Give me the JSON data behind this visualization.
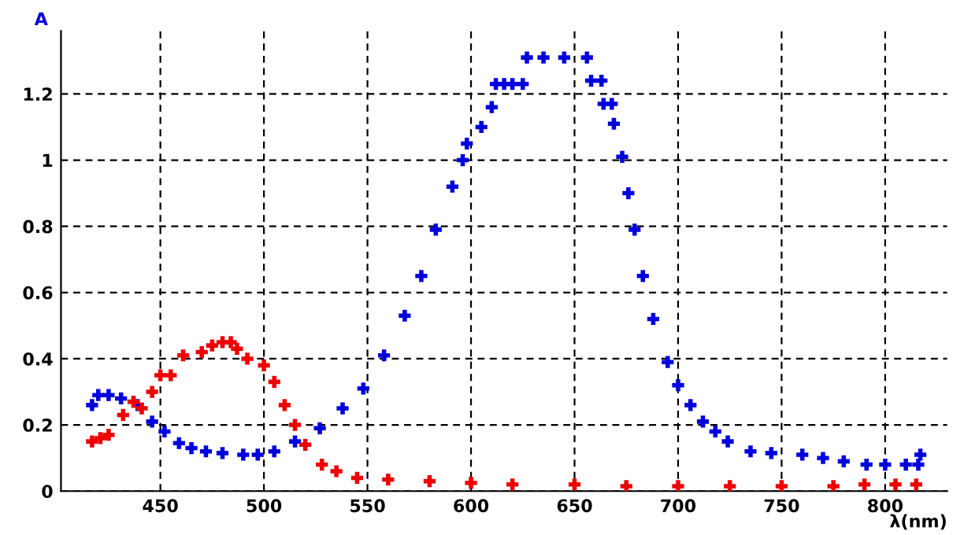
{
  "chart_data": {
    "type": "scatter",
    "xlabel": "λ(nm)",
    "ylabel": "A",
    "marker": "cross",
    "grid": true,
    "xlim": [
      402,
      830
    ],
    "ylim": [
      0,
      1.39
    ],
    "xticks": [
      450,
      500,
      550,
      600,
      650,
      700,
      750,
      800
    ],
    "yticks": [
      0,
      0.2,
      0.4,
      0.6,
      0.8,
      1,
      1.2
    ],
    "series": [
      {
        "color": "#0000dd",
        "x": [
          417,
          420,
          425,
          431,
          439,
          446,
          452,
          459,
          465,
          472,
          480,
          490,
          497,
          505,
          515,
          527,
          538,
          548,
          558,
          568,
          576,
          583,
          591,
          596,
          598,
          605,
          610,
          612,
          616,
          620,
          625,
          627,
          635,
          645,
          656,
          658,
          663,
          664,
          668,
          669,
          673,
          676,
          679,
          683,
          688,
          695,
          700,
          706,
          712,
          718,
          724,
          735,
          745,
          760,
          770,
          780,
          791,
          800,
          810,
          816,
          817
        ],
        "values": [
          0.26,
          0.29,
          0.29,
          0.28,
          0.26,
          0.21,
          0.18,
          0.145,
          0.13,
          0.12,
          0.115,
          0.11,
          0.11,
          0.12,
          0.15,
          0.19,
          0.25,
          0.31,
          0.41,
          0.53,
          0.65,
          0.79,
          0.92,
          1.0,
          1.05,
          1.1,
          1.16,
          1.23,
          1.23,
          1.23,
          1.23,
          1.31,
          1.31,
          1.31,
          1.31,
          1.24,
          1.24,
          1.17,
          1.17,
          1.11,
          1.01,
          0.9,
          0.79,
          0.65,
          0.52,
          0.39,
          0.32,
          0.26,
          0.21,
          0.18,
          0.15,
          0.12,
          0.115,
          0.11,
          0.1,
          0.09,
          0.08,
          0.08,
          0.08,
          0.08,
          0.11
        ]
      },
      {
        "color": "#ee0000",
        "x": [
          417,
          421,
          425,
          432,
          437,
          441,
          446,
          450,
          455,
          461,
          470,
          475,
          480,
          484,
          487,
          492,
          500,
          505,
          510,
          515,
          520,
          528,
          535,
          545,
          560,
          580,
          600,
          620,
          650,
          675,
          700,
          725,
          750,
          775,
          790,
          805,
          815
        ],
        "values": [
          0.15,
          0.16,
          0.17,
          0.23,
          0.27,
          0.25,
          0.3,
          0.35,
          0.35,
          0.41,
          0.42,
          0.44,
          0.45,
          0.45,
          0.43,
          0.4,
          0.38,
          0.33,
          0.26,
          0.2,
          0.14,
          0.08,
          0.06,
          0.04,
          0.035,
          0.03,
          0.025,
          0.02,
          0.02,
          0.015,
          0.015,
          0.015,
          0.015,
          0.015,
          0.02,
          0.02,
          0.02
        ]
      }
    ]
  }
}
